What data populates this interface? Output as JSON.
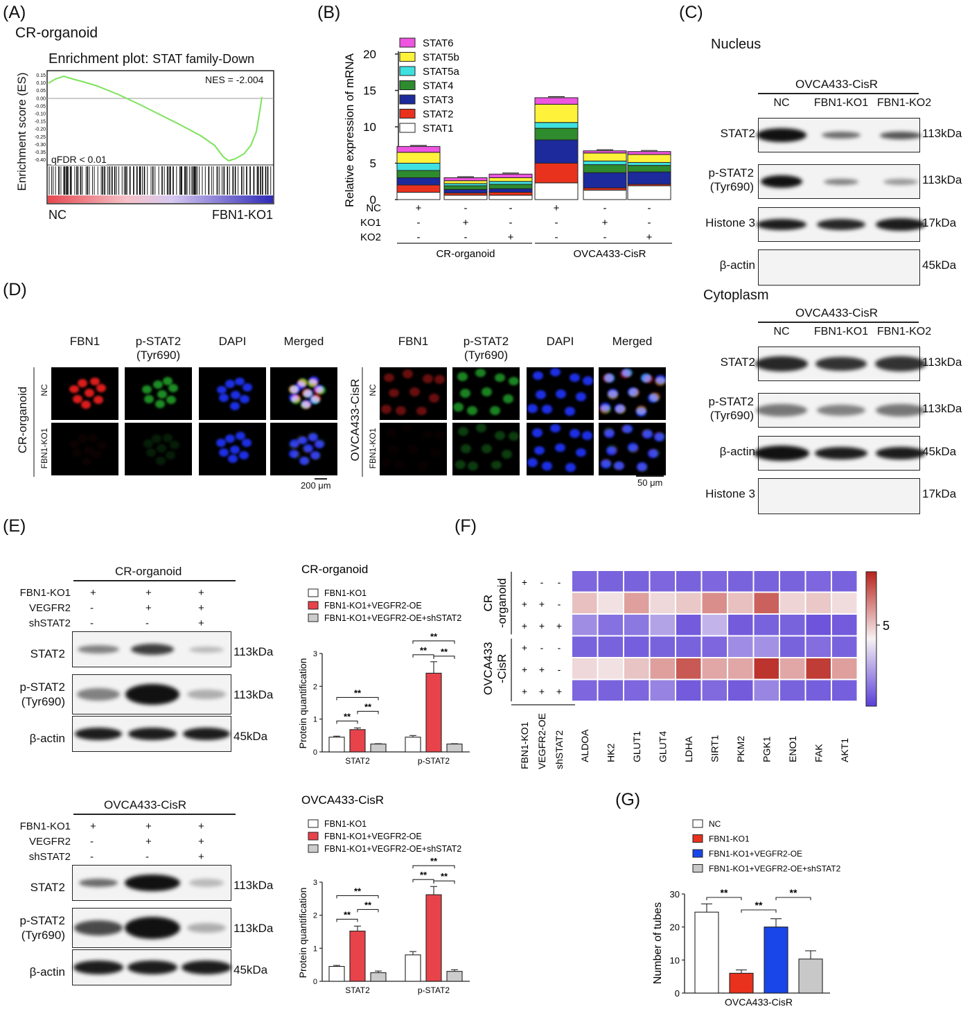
{
  "panels": {
    "A": "(A)",
    "B": "(B)",
    "C": "(C)",
    "D": "(D)",
    "E": "(E)",
    "F": "(F)",
    "G": "(G)"
  },
  "panelA": {
    "sample": "CR-organoid",
    "title_prefix": "Enrichment plot:",
    "title_suffix": "STAT family-Down",
    "ylabel": "Enrichment score (ES)",
    "nes": "NES = -2.004",
    "qfdr": "qFDR < 0.01",
    "left_label": "NC",
    "right_label": "FBN1-KO1",
    "line_color": "#7be35a",
    "yticks": [
      "0.15",
      "0.10",
      "0.05",
      "0.00",
      "-0.05",
      "-0.10",
      "-0.15",
      "-0.20",
      "-0.25",
      "-0.30",
      "-0.35",
      "-0.40"
    ]
  },
  "panelC": {
    "nucleus": "Nucleus",
    "cytoplasm": "Cytoplasm",
    "cell": "OVCA433-CisR",
    "lanes": [
      "NC",
      "FBN1-KO1",
      "FBN1-KO2"
    ],
    "nuc_rows": [
      [
        "STAT2",
        "",
        "113kDa"
      ],
      [
        "p-STAT2",
        "(Tyr690)",
        "113kDa"
      ],
      [
        "Histone 3",
        "",
        "17kDa"
      ],
      [
        "β-actin",
        "",
        "45kDa"
      ]
    ],
    "cyto_rows": [
      [
        "STAT2",
        "",
        "113kDa"
      ],
      [
        "p-STAT2",
        "(Tyr690)",
        "113kDa"
      ],
      [
        "β-actin",
        "",
        "45kDa"
      ],
      [
        "Histone 3",
        "",
        "17kDa"
      ]
    ]
  },
  "panelD": {
    "cols": [
      "FBN1",
      "p-STAT2",
      "(Tyr690)",
      "DAPI",
      "Merged"
    ],
    "left_group": "CR-organoid",
    "right_group": "OVCA433-CisR",
    "rows": [
      "NC",
      "FBN1-KO1"
    ],
    "left_scale": "200 μm",
    "right_scale": "50 μm"
  },
  "panelE": {
    "top_title": "CR-organoid",
    "bottom_title": "OVCA433-CisR",
    "conds": [
      "FBN1-KO1",
      "VEGFR2",
      "shSTAT2"
    ],
    "signs": [
      [
        "+",
        "+",
        "+"
      ],
      [
        "-",
        "+",
        "+"
      ],
      [
        "-",
        "-",
        "+"
      ]
    ],
    "rows": [
      [
        "STAT2",
        "",
        "113kDa"
      ],
      [
        "p-STAT2",
        "(Tyr690)",
        "113kDa"
      ],
      [
        "β-actin",
        "",
        "45kDa"
      ]
    ]
  },
  "panelF": {
    "row_groups": [
      "CR",
      "-organoid",
      "OVCA433",
      "-CisR"
    ],
    "cond_labels": [
      "FBN1-KO1",
      "VEGFR2-OE",
      "shSTAT2"
    ],
    "signs": [
      [
        "+",
        "-",
        "-"
      ],
      [
        "+",
        "+",
        "-"
      ],
      [
        "+",
        "+",
        "+"
      ],
      [
        "+",
        "-",
        "-"
      ],
      [
        "+",
        "+",
        "-"
      ],
      [
        "+",
        "+",
        "+"
      ]
    ],
    "genes": [
      "ALDOA",
      "HK2",
      "GLUT1",
      "GLUT4",
      "LDHA",
      "SIRT1",
      "PKM2",
      "PGK1",
      "ENO1",
      "FAK",
      "AKT1"
    ],
    "colorbar_label": "5",
    "low_color": "#5a3fd8",
    "mid_color": "#f7f1f3",
    "high_color": "#b8231c"
  },
  "chart_data": [
    {
      "id": "B",
      "type": "bar",
      "stacked": true,
      "ylabel": "Relative expression of  mRNA",
      "ylim": [
        0,
        20
      ],
      "yticks": [
        "0",
        "5",
        "10",
        "15",
        "20"
      ],
      "row_labels": [
        "NC",
        "KO1",
        "KO2"
      ],
      "col_signs": [
        [
          "+",
          "-",
          "-",
          "+",
          "-",
          "-"
        ],
        [
          "-",
          "+",
          "-",
          "-",
          "+",
          "-"
        ],
        [
          "-",
          "-",
          "+",
          "-",
          "-",
          "+"
        ]
      ],
      "groups": [
        "CR-organoid",
        "OVCA433-CisR"
      ],
      "series": [
        {
          "name": "STAT1",
          "color": "#ffffff",
          "values": [
            1.0,
            0.6,
            0.6,
            2.3,
            1.3,
            1.9
          ]
        },
        {
          "name": "STAT2",
          "color": "#e8321e",
          "values": [
            1.0,
            0.3,
            0.4,
            2.7,
            0.3,
            0.2
          ]
        },
        {
          "name": "STAT3",
          "color": "#1c2a9c",
          "values": [
            1.0,
            0.5,
            0.5,
            3.2,
            2.1,
            1.7
          ]
        },
        {
          "name": "STAT4",
          "color": "#2e8b2e",
          "values": [
            1.0,
            0.5,
            0.6,
            1.6,
            1.1,
            0.9
          ]
        },
        {
          "name": "STAT5a",
          "color": "#3ee0e0",
          "values": [
            1.0,
            0.3,
            0.4,
            0.8,
            0.5,
            0.4
          ]
        },
        {
          "name": "STAT5b",
          "color": "#fff23a",
          "values": [
            1.5,
            0.4,
            0.5,
            2.5,
            1.1,
            1.1
          ]
        },
        {
          "name": "STAT6",
          "color": "#ee55e0",
          "values": [
            0.8,
            0.4,
            0.5,
            0.9,
            0.3,
            0.4
          ]
        }
      ]
    },
    {
      "id": "E-top",
      "type": "bar",
      "title": "CR-organoid",
      "ylabel": "Protein quantification",
      "categories": [
        "STAT2",
        "p-STAT2"
      ],
      "ylim": [
        0,
        3
      ],
      "yticks": [
        "0",
        "1",
        "2",
        "3"
      ],
      "series": [
        {
          "name": "FBN1-KO1",
          "color": "#ffffff",
          "values": [
            0.45,
            0.45
          ],
          "err": [
            0.03,
            0.05
          ]
        },
        {
          "name": "FBN1-KO1+VEGFR2-OE",
          "color": "#e8434b",
          "values": [
            0.68,
            2.4
          ],
          "err": [
            0.05,
            0.35
          ]
        },
        {
          "name": "FBN1-KO1+VEGFR2-OE+shSTAT2",
          "color": "#cccccc",
          "values": [
            0.24,
            0.24
          ],
          "err": [
            0.01,
            0.01
          ]
        }
      ],
      "sig": "**"
    },
    {
      "id": "E-bottom",
      "type": "bar",
      "title": "OVCA433-CisR",
      "ylabel": "Protein quantification",
      "categories": [
        "STAT2",
        "p-STAT2"
      ],
      "ylim": [
        0,
        3
      ],
      "yticks": [
        "0",
        "1",
        "2",
        "3"
      ],
      "series": [
        {
          "name": "FBN1-KO1",
          "color": "#ffffff",
          "values": [
            0.45,
            0.8
          ],
          "err": [
            0.03,
            0.1
          ]
        },
        {
          "name": "FBN1-KO1+VEGFR2-OE",
          "color": "#e8434b",
          "values": [
            1.52,
            2.62
          ],
          "err": [
            0.15,
            0.25
          ]
        },
        {
          "name": "FBN1-KO1+VEGFR2-OE+shSTAT2",
          "color": "#cccccc",
          "values": [
            0.26,
            0.3
          ],
          "err": [
            0.05,
            0.05
          ]
        }
      ],
      "sig": "**"
    },
    {
      "id": "F",
      "type": "heatmap",
      "rows": 6,
      "columns": [
        "ALDOA",
        "HK2",
        "GLUT1",
        "GLUT4",
        "LDHA",
        "SIRT1",
        "PKM2",
        "PGK1",
        "ENO1",
        "FAK",
        "AKT1"
      ],
      "values": [
        [
          1.1,
          1.0,
          1.0,
          1.1,
          1.0,
          1.1,
          1.0,
          1.0,
          1.0,
          1.1,
          1.0
        ],
        [
          6.2,
          5.4,
          7.0,
          5.6,
          6.0,
          7.4,
          6.2,
          8.5,
          5.7,
          6.0,
          5.5
        ],
        [
          2.2,
          1.4,
          1.6,
          2.8,
          0.8,
          3.3,
          0.8,
          1.0,
          1.0,
          0.6,
          0.8
        ],
        [
          1.0,
          1.0,
          0.9,
          1.0,
          1.0,
          1.1,
          2.2,
          2.3,
          1.0,
          1.3,
          1.0
        ],
        [
          5.6,
          5.4,
          6.1,
          7.0,
          8.7,
          6.8,
          6.8,
          9.6,
          6.8,
          9.4,
          7.0
        ],
        [
          1.1,
          1.0,
          1.1,
          1.9,
          0.8,
          1.2,
          0.8,
          2.0,
          1.0,
          0.9,
          0.9
        ]
      ],
      "range": [
        0,
        10
      ],
      "colorbar_tick": "5"
    },
    {
      "id": "G",
      "type": "bar",
      "xlabel": "OVCA433-CisR",
      "ylabel": "Number of tubes",
      "ylim": [
        0,
        30
      ],
      "yticks": [
        "0",
        "10",
        "20",
        "30"
      ],
      "categories": [
        "NC",
        "FBN1-KO1",
        "FBN1-KO1+VEGFR2-OE",
        "FBN1-KO1+VEGFR2-OE+shSTAT2"
      ],
      "values": [
        24.5,
        6.0,
        20.0,
        10.3
      ],
      "err": [
        2.5,
        1.0,
        2.5,
        2.5
      ],
      "colors": [
        "#ffffff",
        "#e8321e",
        "#1846e8",
        "#c8c8c8"
      ],
      "sig": "**"
    }
  ]
}
